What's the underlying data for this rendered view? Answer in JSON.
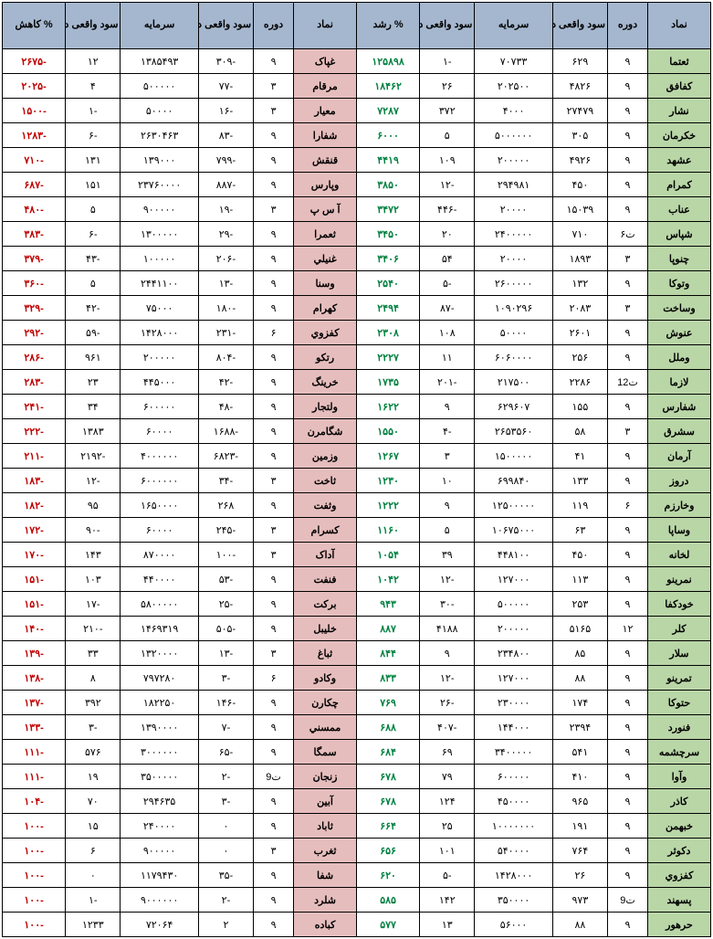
{
  "headers": {
    "symbol": "نماد",
    "period": "دوره",
    "profit": "سود واقعی دوره",
    "capital": "سرمایه",
    "prev_profit": "سود واقعی دوره قبل",
    "growth": "% رشد",
    "decline": "% کاهش"
  },
  "colors": {
    "header_bg": "#a5b7ce",
    "green_bg": "#b9d6a7",
    "pink_bg": "#e6bdbd",
    "growth_text": "#008040",
    "decline_text": "#c00000",
    "border": "#000000"
  },
  "rows": [
    {
      "g": {
        "sym": "ثعتما",
        "per": "۹",
        "prof": "۶۲۹",
        "cap": "۷۰۷۳۳",
        "prev": "-۱",
        "pct": "۱۲۵۸۹۸"
      },
      "d": {
        "sym": "غپاک",
        "per": "۹",
        "prof": "-۳۰۹",
        "cap": "۱۳۸۵۴۹۳",
        "prev": "۱۲",
        "pct": "-۲۶۷۵"
      }
    },
    {
      "g": {
        "sym": "کفافق",
        "per": "۹",
        "prof": "۴۸۲۶",
        "cap": "۲۰۲۵۰۰",
        "prev": "۲۶",
        "pct": "۱۸۴۶۲"
      },
      "d": {
        "sym": "مرقام",
        "per": "۳",
        "prof": "-۷۷",
        "cap": "۵۰۰۰۰۰",
        "prev": "۴",
        "pct": "-۲۰۲۵"
      }
    },
    {
      "g": {
        "sym": "نشار",
        "per": "۹",
        "prof": "۲۷۴۷۹",
        "cap": "۴۰۰۰",
        "prev": "۳۷۲",
        "pct": "۷۲۸۷"
      },
      "d": {
        "sym": "معیار",
        "per": "۳",
        "prof": "-۱۶",
        "cap": "۵۰۰۰۰",
        "prev": "-۱",
        "pct": "-۱۵۰۰"
      }
    },
    {
      "g": {
        "sym": "خکرمان",
        "per": "۹",
        "prof": "۳۰۵",
        "cap": "۵۰۰۰۰۰۰",
        "prev": "۵",
        "pct": "۶۰۰۰"
      },
      "d": {
        "sym": "شفارا",
        "per": "۹",
        "prof": "-۸۳",
        "cap": "۲۶۳۰۴۶۳",
        "prev": "-۶",
        "pct": "-۱۲۸۳"
      }
    },
    {
      "g": {
        "sym": "عشهد",
        "per": "۹",
        "prof": "۴۹۲۶",
        "cap": "۲۰۰۰۰۰",
        "prev": "۱۰۹",
        "pct": "۴۴۱۹"
      },
      "d": {
        "sym": "قنقش",
        "per": "۹",
        "prof": "-۷۹۹",
        "cap": "۱۳۹۰۰۰",
        "prev": "۱۳۱",
        "pct": "-۷۱۰"
      }
    },
    {
      "g": {
        "sym": "کمرام",
        "per": "۹",
        "prof": "۴۵۰",
        "cap": "۲۹۴۹۸۱",
        "prev": "-۱۲",
        "pct": "۳۸۵۰"
      },
      "d": {
        "sym": "وپارس",
        "per": "۹",
        "prof": "-۸۸۷",
        "cap": "۲۳۷۶۰۰۰۰",
        "prev": "۱۵۱",
        "pct": "-۶۸۷"
      }
    },
    {
      "g": {
        "sym": "عناب",
        "per": "۹",
        "prof": "۱۵۰۳۹",
        "cap": "۲۰۰۰۰",
        "prev": "-۴۴۶",
        "pct": "۳۴۷۲"
      },
      "d": {
        "sym": "آ س پ",
        "per": "۳",
        "prof": "-۱۹",
        "cap": "۹۰۰۰۰۰",
        "prev": "۵",
        "pct": "-۴۸۰"
      }
    },
    {
      "g": {
        "sym": "شپاس",
        "per": "ت۶",
        "prof": "۷۱۰",
        "cap": "۲۴۰۰۰۰۰",
        "prev": "۲۰",
        "pct": "۳۴۵۰"
      },
      "d": {
        "sym": "ثعمرا",
        "per": "۹",
        "prof": "-۲۹",
        "cap": "۱۳۰۰۰۰۰",
        "prev": "-۶",
        "pct": "-۳۸۳"
      }
    },
    {
      "g": {
        "sym": "چنوپا",
        "per": "۳",
        "prof": "۱۸۹۳",
        "cap": "۲۰۰۰۰",
        "prev": "۵۴",
        "pct": "۳۴۰۶"
      },
      "d": {
        "sym": "غنیلي",
        "per": "۹",
        "prof": "-۲۰۶",
        "cap": "۱۰۰۰۰۰",
        "prev": "-۴۳",
        "pct": "-۳۷۹"
      }
    },
    {
      "g": {
        "sym": "وتوکا",
        "per": "۹",
        "prof": "۱۳۲",
        "cap": "۲۶۰۰۰۰۰",
        "prev": "-۵",
        "pct": "۲۵۴۰"
      },
      "d": {
        "sym": "وسنا",
        "per": "۹",
        "prof": "-۱۳",
        "cap": "۲۴۴۱۱۰۰",
        "prev": "۵",
        "pct": "-۳۶۰"
      }
    },
    {
      "g": {
        "sym": "وساخت",
        "per": "۳",
        "prof": "۲۰۸۳",
        "cap": "۱۰۹۰۲۹۶",
        "prev": "-۸۷",
        "pct": "۲۴۹۴"
      },
      "d": {
        "sym": "کهرام",
        "per": "۹",
        "prof": "-۱۸۰",
        "cap": "۷۵۰۰۰",
        "prev": "-۴۲",
        "pct": "-۳۲۹"
      }
    },
    {
      "g": {
        "sym": "عنوش",
        "per": "۹",
        "prof": "۲۶۰۱",
        "cap": "۵۰۰۰۰",
        "prev": "۱۰۸",
        "pct": "۲۳۰۸"
      },
      "d": {
        "sym": "کفزوي",
        "per": "۶",
        "prof": "-۲۳۱",
        "cap": "۱۴۲۸۰۰۰",
        "prev": "-۵۹",
        "pct": "-۲۹۲"
      }
    },
    {
      "g": {
        "sym": "وملل",
        "per": "۹",
        "prof": "۲۵۶",
        "cap": "۶۰۶۰۰۰۰",
        "prev": "۱۱",
        "pct": "۲۲۲۷"
      },
      "d": {
        "sym": "رتکو",
        "per": "۹",
        "prof": "-۸۰۴",
        "cap": "۲۰۰۰۰۰",
        "prev": "۹۶۱",
        "pct": "-۲۸۶"
      }
    },
    {
      "g": {
        "sym": "لازما",
        "per": "ت12",
        "prof": "۲۲۸۶",
        "cap": "۲۱۷۵۰۰",
        "prev": "-۲۰۱",
        "pct": "۱۷۳۵"
      },
      "d": {
        "sym": "خرینگ",
        "per": "۹",
        "prof": "-۴۲",
        "cap": "۴۴۵۰۰۰",
        "prev": "۲۳",
        "pct": "-۲۸۳"
      }
    },
    {
      "g": {
        "sym": "شفارس",
        "per": "۹",
        "prof": "۱۵۵",
        "cap": "۶۲۹۶۰۷",
        "prev": "۹",
        "pct": "۱۶۲۲"
      },
      "d": {
        "sym": "ولتجار",
        "per": "۹",
        "prof": "-۴۸",
        "cap": "۶۰۰۰۰۰",
        "prev": "۳۴",
        "pct": "-۲۴۱"
      }
    },
    {
      "g": {
        "sym": "سشرق",
        "per": "۳",
        "prof": "۵۸",
        "cap": "۲۶۵۳۵۶۰",
        "prev": "-۴",
        "pct": "۱۵۵۰"
      },
      "d": {
        "sym": "شگامرن",
        "per": "۹",
        "prof": "-۱۶۸۸",
        "cap": "۶۰۰۰۰",
        "prev": "۱۳۸۳",
        "pct": "-۲۲۲"
      }
    },
    {
      "g": {
        "sym": "آرمان",
        "per": "۹",
        "prof": "۴۱",
        "cap": "۱۵۰۰۰۰۰",
        "prev": "۳",
        "pct": "۱۲۶۷"
      },
      "d": {
        "sym": "وزمین",
        "per": "۹",
        "prof": "-۶۸۲۳",
        "cap": "۴۰۰۰۰۰۰",
        "prev": "-۲۱۹۲",
        "pct": "-۲۱۱"
      }
    },
    {
      "g": {
        "sym": "دروز",
        "per": "۹",
        "prof": "۱۳۳",
        "cap": "۶۹۹۸۴۰",
        "prev": "۱۰",
        "pct": "۱۲۳۰"
      },
      "d": {
        "sym": "ثاخت",
        "per": "۳",
        "prof": "-۳۴",
        "cap": "۶۰۰۰۰۰۰",
        "prev": "-۱۲",
        "pct": "-۱۸۳"
      }
    },
    {
      "g": {
        "sym": "وخارزم",
        "per": "۶",
        "prof": "۱۱۹",
        "cap": "۱۲۵۰۰۰۰۰",
        "prev": "۹",
        "pct": "۱۲۲۲"
      },
      "d": {
        "sym": "وثفت",
        "per": "۹",
        "prof": "۲۶۸",
        "cap": "۱۶۵۰۰۰۰",
        "prev": "۹۵",
        "pct": "-۱۸۲"
      }
    },
    {
      "g": {
        "sym": "وساپا",
        "per": "۹",
        "prof": "۶۳",
        "cap": "۱۰۶۷۵۰۰۰",
        "prev": "۵",
        "pct": "۱۱۶۰"
      },
      "d": {
        "sym": "کسرام",
        "per": "۳",
        "prof": "-۲۴۵",
        "cap": "۶۰۰۰۰",
        "prev": "-۹۰",
        "pct": "-۱۷۲"
      }
    },
    {
      "g": {
        "sym": "لخانه",
        "per": "۹",
        "prof": "۴۵۰",
        "cap": "۴۴۸۱۰۰",
        "prev": "۳۹",
        "pct": "۱۰۵۴"
      },
      "d": {
        "sym": "آداک",
        "per": "۳",
        "prof": "-۱۰۰",
        "cap": "۸۷۰۰۰۰",
        "prev": "۱۴۳",
        "pct": "-۱۷۰"
      }
    },
    {
      "g": {
        "sym": "نمرینو",
        "per": "۹",
        "prof": "۱۱۳",
        "cap": "۱۲۷۰۰۰",
        "prev": "-۱۲",
        "pct": "۱۰۴۲"
      },
      "d": {
        "sym": "فنفت",
        "per": "۹",
        "prof": "-۵۳",
        "cap": "۴۴۰۰۰۰",
        "prev": "۱۰۳",
        "pct": "-۱۵۱"
      }
    },
    {
      "g": {
        "sym": "خودکفا",
        "per": "۹",
        "prof": "۲۵۳",
        "cap": "۵۰۰۰۰۰",
        "prev": "-۳۰",
        "pct": "۹۴۳"
      },
      "d": {
        "sym": "برکت",
        "per": "۹",
        "prof": "-۲۵",
        "cap": "۵۸۰۰۰۰۰",
        "prev": "-۱۷",
        "pct": "-۱۵۱"
      }
    },
    {
      "g": {
        "sym": "کلر",
        "per": "۱۲",
        "prof": "۵۱۶۵",
        "cap": "۲۰۰۰۰۰",
        "prev": "۴۱۸۸",
        "pct": "۸۸۷"
      },
      "d": {
        "sym": "خلیبل",
        "per": "۹",
        "prof": "-۵۰۵",
        "cap": "۱۴۶۹۳۱۹",
        "prev": "-۲۱۰",
        "pct": "-۱۴۰"
      }
    },
    {
      "g": {
        "sym": "سلار",
        "per": "۹",
        "prof": "۸۵",
        "cap": "۲۳۴۸۰۰",
        "prev": "۹",
        "pct": "۸۴۴"
      },
      "d": {
        "sym": "ثباغ",
        "per": "۳",
        "prof": "-۱۳",
        "cap": "۱۳۲۰۰۰۰",
        "prev": "۳۳",
        "pct": "-۱۳۹"
      }
    },
    {
      "g": {
        "sym": "تمرینو",
        "per": "۹",
        "prof": "۸۸",
        "cap": "۱۲۷۰۰۰",
        "prev": "-۱۲",
        "pct": "۸۳۳"
      },
      "d": {
        "sym": "وکادو",
        "per": "۶",
        "prof": "-۳",
        "cap": "۷۹۷۲۸۰",
        "prev": "۸",
        "pct": "-۱۳۸"
      }
    },
    {
      "g": {
        "sym": "حتوکا",
        "per": "۹",
        "prof": "۱۷۴",
        "cap": "۲۳۰۰۰۰",
        "prev": "-۲۶",
        "pct": "۷۶۹"
      },
      "d": {
        "sym": "چکارن",
        "per": "۹",
        "prof": "-۱۴۶",
        "cap": "۱۸۲۲۵۰",
        "prev": "۳۹۲",
        "pct": "-۱۳۷"
      }
    },
    {
      "g": {
        "sym": "فنورد",
        "per": "۹",
        "prof": "۲۳۹۴",
        "cap": "۱۴۴۰۰۰",
        "prev": "-۴۰۷",
        "pct": "۶۸۸"
      },
      "d": {
        "sym": "ممسني",
        "per": "۹",
        "prof": "-۷",
        "cap": "۱۳۹۰۰۰۰",
        "prev": "-۳",
        "pct": "-۱۳۳"
      }
    },
    {
      "g": {
        "sym": "سرچشمه",
        "per": "۹",
        "prof": "۵۴۱",
        "cap": "۳۴۰۰۰۰۰",
        "prev": "۶۹",
        "pct": "۶۸۴"
      },
      "d": {
        "sym": "سمگا",
        "per": "۹",
        "prof": "-۶۵",
        "cap": "۳۰۰۰۰۰۰",
        "prev": "۵۷۶",
        "pct": "-۱۱۱"
      }
    },
    {
      "g": {
        "sym": "وآوا",
        "per": "۹",
        "prof": "۴۱۰",
        "cap": "۶۰۰۰۰۰",
        "prev": "۷۹",
        "pct": "۶۷۸"
      },
      "d": {
        "sym": "زنجان",
        "per": "ت9",
        "prof": "-۲",
        "cap": "۳۵۰۰۰۰۰",
        "prev": "۱۹",
        "pct": "-۱۱۱"
      }
    },
    {
      "g": {
        "sym": "کاذر",
        "per": "۹",
        "prof": "۹۶۵",
        "cap": "۴۵۰۰۰۰",
        "prev": "۱۲۴",
        "pct": "۶۷۸"
      },
      "d": {
        "sym": "آبین",
        "per": "۹",
        "prof": "-۳",
        "cap": "۲۹۴۶۳۵",
        "prev": "۷۰",
        "pct": "-۱۰۴"
      }
    },
    {
      "g": {
        "sym": "خبهمن",
        "per": "۹",
        "prof": "۱۹۱",
        "cap": "۱۰۰۰۰۰۰۰",
        "prev": "۲۵",
        "pct": "۶۶۴"
      },
      "d": {
        "sym": "ثاباد",
        "per": "۹",
        "prof": "۰",
        "cap": "۲۴۰۰۰۰",
        "prev": "۱۵",
        "pct": "-۱۰۰"
      }
    },
    {
      "g": {
        "sym": "دکوثر",
        "per": "۹",
        "prof": "۷۶۴",
        "cap": "۵۴۰۰۰۰",
        "prev": "۱۰۱",
        "pct": "۶۵۶"
      },
      "d": {
        "sym": "ثغرب",
        "per": "۳",
        "prof": "۰",
        "cap": "۹۰۰۰۰۰",
        "prev": "۶",
        "pct": "-۱۰۰"
      }
    },
    {
      "g": {
        "sym": "کفزوي",
        "per": "۹",
        "prof": "۲۶",
        "cap": "۱۴۲۸۰۰۰",
        "prev": "-۵",
        "pct": "۶۲۰"
      },
      "d": {
        "sym": "شفا",
        "per": "۹",
        "prof": "-۳۵",
        "cap": "۱۱۷۹۴۳۰",
        "prev": "۰",
        "pct": "-۱۰۰"
      }
    },
    {
      "g": {
        "sym": "پسهند",
        "per": "ت9",
        "prof": "۹۷۳",
        "cap": "۳۵۰۰۰۰",
        "prev": "۱۴۲",
        "pct": "۵۸۵"
      },
      "d": {
        "sym": "شلرد",
        "per": "۹",
        "prof": "-۲",
        "cap": "۹۰۰۰۰۰۰",
        "prev": "-۱",
        "pct": "-۱۰۰"
      }
    },
    {
      "g": {
        "sym": "حرهور",
        "per": "۹",
        "prof": "۸۸",
        "cap": "۵۶۰۰۰",
        "prev": "۱۳",
        "pct": "۵۷۷"
      },
      "d": {
        "sym": "کباده",
        "per": "۹",
        "prof": "۲",
        "cap": "۷۲۰۶۴",
        "prev": "۱۲۳۳",
        "pct": "-۱۰۰"
      }
    }
  ]
}
